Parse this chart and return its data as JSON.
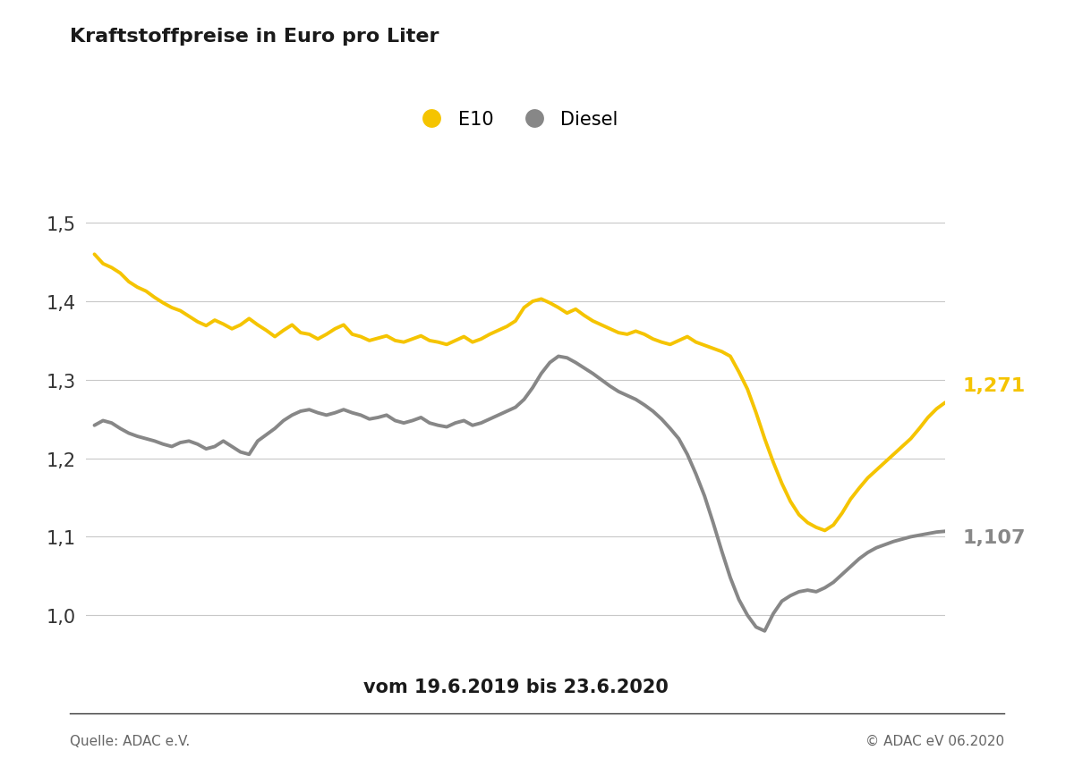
{
  "title": "Kraftstoffpreise in Euro pro Liter",
  "date_label": "vom 19.6.2019 bis 23.6.2020",
  "source_left": "Quelle: ADAC e.V.",
  "source_right": "© ADAC eV 06.2020",
  "legend_e10": "E10",
  "legend_diesel": "Diesel",
  "e10_color": "#F5C400",
  "diesel_color": "#878787",
  "background_color": "#FFFFFF",
  "ylim": [
    0.965,
    1.565
  ],
  "yticks": [
    1.0,
    1.1,
    1.2,
    1.3,
    1.4,
    1.5
  ],
  "e10_label_value": "1,271",
  "diesel_label_value": "1,107",
  "e10_data": [
    1.46,
    1.448,
    1.443,
    1.436,
    1.425,
    1.418,
    1.413,
    1.405,
    1.398,
    1.392,
    1.388,
    1.381,
    1.374,
    1.369,
    1.376,
    1.371,
    1.365,
    1.37,
    1.378,
    1.37,
    1.363,
    1.355,
    1.363,
    1.37,
    1.36,
    1.358,
    1.352,
    1.358,
    1.365,
    1.37,
    1.358,
    1.355,
    1.35,
    1.353,
    1.356,
    1.35,
    1.348,
    1.352,
    1.356,
    1.35,
    1.348,
    1.345,
    1.35,
    1.355,
    1.348,
    1.352,
    1.358,
    1.363,
    1.368,
    1.375,
    1.392,
    1.4,
    1.403,
    1.398,
    1.392,
    1.385,
    1.39,
    1.382,
    1.375,
    1.37,
    1.365,
    1.36,
    1.358,
    1.362,
    1.358,
    1.352,
    1.348,
    1.345,
    1.35,
    1.355,
    1.348,
    1.344,
    1.34,
    1.336,
    1.33,
    1.31,
    1.288,
    1.258,
    1.225,
    1.195,
    1.168,
    1.145,
    1.128,
    1.118,
    1.112,
    1.108,
    1.115,
    1.13,
    1.148,
    1.162,
    1.175,
    1.185,
    1.195,
    1.205,
    1.215,
    1.225,
    1.238,
    1.252,
    1.263,
    1.271
  ],
  "diesel_data": [
    1.242,
    1.248,
    1.245,
    1.238,
    1.232,
    1.228,
    1.225,
    1.222,
    1.218,
    1.215,
    1.22,
    1.222,
    1.218,
    1.212,
    1.215,
    1.222,
    1.215,
    1.208,
    1.205,
    1.222,
    1.23,
    1.238,
    1.248,
    1.255,
    1.26,
    1.262,
    1.258,
    1.255,
    1.258,
    1.262,
    1.258,
    1.255,
    1.25,
    1.252,
    1.255,
    1.248,
    1.245,
    1.248,
    1.252,
    1.245,
    1.242,
    1.24,
    1.245,
    1.248,
    1.242,
    1.245,
    1.25,
    1.255,
    1.26,
    1.265,
    1.275,
    1.29,
    1.308,
    1.322,
    1.33,
    1.328,
    1.322,
    1.315,
    1.308,
    1.3,
    1.292,
    1.285,
    1.28,
    1.275,
    1.268,
    1.26,
    1.25,
    1.238,
    1.225,
    1.205,
    1.18,
    1.152,
    1.118,
    1.082,
    1.048,
    1.02,
    1.0,
    0.985,
    0.98,
    1.002,
    1.018,
    1.025,
    1.03,
    1.032,
    1.03,
    1.035,
    1.042,
    1.052,
    1.062,
    1.072,
    1.08,
    1.086,
    1.09,
    1.094,
    1.097,
    1.1,
    1.102,
    1.104,
    1.106,
    1.107
  ]
}
